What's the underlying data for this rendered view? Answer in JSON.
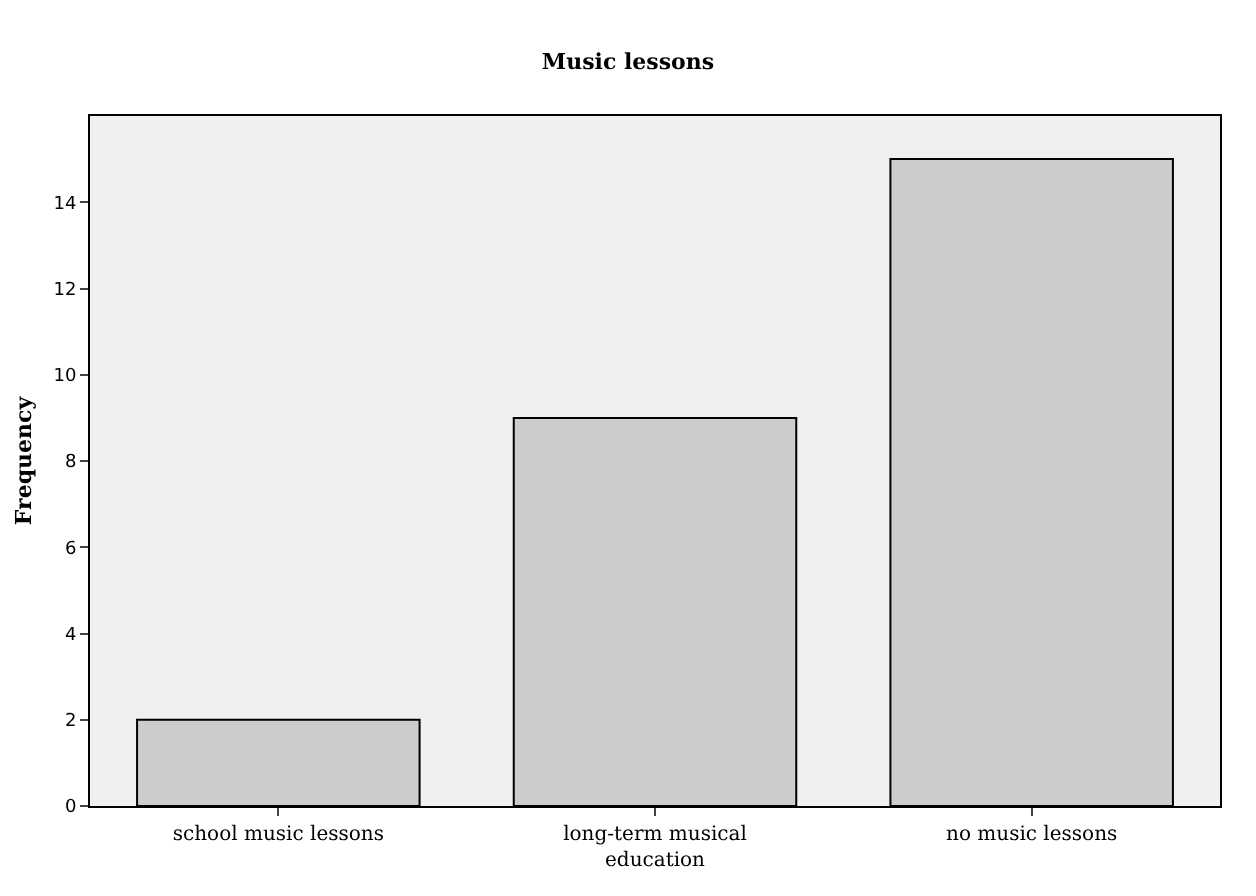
{
  "chart_data": {
    "type": "bar",
    "title": "Music lessons",
    "ylabel": "Frequency",
    "categories": [
      "school music lessons",
      "long-term musical education",
      "no music lessons"
    ],
    "values": [
      2,
      9,
      15
    ],
    "color": "#cccccc",
    "ylim": [
      0,
      16
    ],
    "yticks": [
      0,
      2,
      4,
      6,
      8,
      10,
      12,
      14
    ],
    "grid": false
  }
}
